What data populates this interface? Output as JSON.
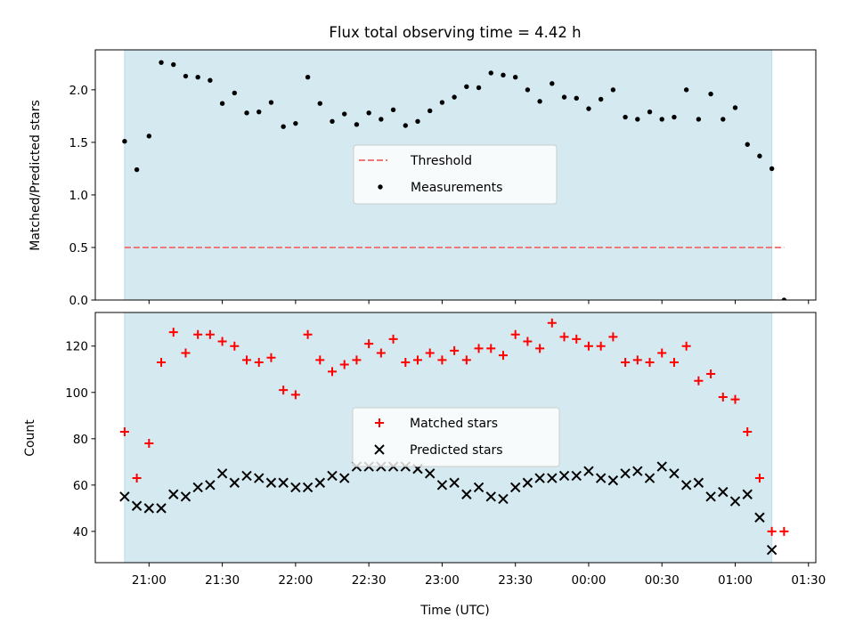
{
  "chart_data": [
    {
      "type": "scatter",
      "panel": "top",
      "title": "Flux total observing time = 4.42 h",
      "ylabel": "Matched/Predicted stars",
      "ylim": [
        0,
        2.38
      ],
      "yticks": [
        0.0,
        0.5,
        1.0,
        1.5,
        2.0
      ],
      "ytick_labels": [
        "0.0",
        "0.5",
        "1.0",
        "1.5",
        "2.0"
      ],
      "shaded_span": {
        "start": "20:50",
        "end": "01:15",
        "color": "#d4eaf0"
      },
      "legend": {
        "placement": "center",
        "entries": [
          "Threshold",
          "Measurements"
        ]
      },
      "series": [
        {
          "name": "Threshold",
          "style": "dashed-line",
          "color": "#f07878",
          "x": [
            "20:50",
            "01:20"
          ],
          "y": [
            0.5,
            0.5
          ]
        },
        {
          "name": "Measurements",
          "style": "dot",
          "color": "#000000",
          "x": [
            "20:50",
            "20:55",
            "21:00",
            "21:05",
            "21:10",
            "21:15",
            "21:20",
            "21:25",
            "21:30",
            "21:35",
            "21:40",
            "21:45",
            "21:50",
            "21:55",
            "22:00",
            "22:05",
            "22:10",
            "22:15",
            "22:20",
            "22:25",
            "22:30",
            "22:35",
            "22:40",
            "22:45",
            "22:50",
            "22:55",
            "23:00",
            "23:05",
            "23:10",
            "23:15",
            "23:20",
            "23:25",
            "23:30",
            "23:35",
            "23:40",
            "23:45",
            "23:50",
            "23:55",
            "00:00",
            "00:05",
            "00:10",
            "00:15",
            "00:20",
            "00:25",
            "00:30",
            "00:35",
            "00:40",
            "00:45",
            "00:50",
            "00:55",
            "01:00",
            "01:05",
            "01:10",
            "01:15",
            "01:20"
          ],
          "y": [
            1.51,
            1.24,
            1.56,
            2.26,
            2.24,
            2.13,
            2.12,
            2.09,
            1.87,
            1.97,
            1.78,
            1.79,
            1.88,
            1.65,
            1.68,
            2.12,
            1.87,
            1.7,
            1.77,
            1.67,
            1.78,
            1.72,
            1.81,
            1.66,
            1.7,
            1.8,
            1.88,
            1.93,
            2.03,
            2.02,
            2.16,
            2.14,
            2.12,
            2.0,
            1.89,
            2.06,
            1.93,
            1.92,
            1.82,
            1.91,
            2.0,
            1.74,
            1.72,
            1.79,
            1.72,
            1.74,
            2.0,
            1.72,
            1.96,
            1.72,
            1.83,
            1.48,
            1.37,
            1.25,
            0.0
          ]
        }
      ]
    },
    {
      "type": "scatter",
      "panel": "bottom",
      "xlabel": "Time (UTC)",
      "ylabel": "Count",
      "ylim": [
        26.5,
        134.5
      ],
      "yticks": [
        40,
        60,
        80,
        100,
        120
      ],
      "ytick_labels": [
        "40",
        "60",
        "80",
        "100",
        "120"
      ],
      "xlim": [
        "20:38",
        "01:33"
      ],
      "xticks": [
        "21:00",
        "21:30",
        "22:00",
        "22:30",
        "23:00",
        "23:30",
        "00:00",
        "00:30",
        "01:00",
        "01:30"
      ],
      "xtick_labels": [
        "21:00",
        "21:30",
        "22:00",
        "22:30",
        "23:00",
        "23:30",
        "00:00",
        "00:30",
        "01:00",
        "01:30"
      ],
      "shaded_span": {
        "start": "20:50",
        "end": "01:15",
        "color": "#d4eaf0"
      },
      "legend": {
        "placement": "center",
        "entries": [
          "Matched stars",
          "Predicted stars"
        ]
      },
      "series": [
        {
          "name": "Matched stars",
          "style": "plus",
          "color": "#ff0000",
          "x": [
            "20:50",
            "20:55",
            "21:00",
            "21:05",
            "21:10",
            "21:15",
            "21:20",
            "21:25",
            "21:30",
            "21:35",
            "21:40",
            "21:45",
            "21:50",
            "21:55",
            "22:00",
            "22:05",
            "22:10",
            "22:15",
            "22:20",
            "22:25",
            "22:30",
            "22:35",
            "22:40",
            "22:45",
            "22:50",
            "22:55",
            "23:00",
            "23:05",
            "23:10",
            "23:15",
            "23:20",
            "23:25",
            "23:30",
            "23:35",
            "23:40",
            "23:45",
            "23:50",
            "23:55",
            "00:00",
            "00:05",
            "00:10",
            "00:15",
            "00:20",
            "00:25",
            "00:30",
            "00:35",
            "00:40",
            "00:45",
            "00:50",
            "00:55",
            "01:00",
            "01:05",
            "01:10",
            "01:15",
            "01:20"
          ],
          "y": [
            83,
            63,
            78,
            113,
            126,
            117,
            125,
            125,
            122,
            120,
            114,
            113,
            115,
            101,
            99,
            125,
            114,
            109,
            112,
            114,
            121,
            117,
            123,
            113,
            114,
            117,
            114,
            118,
            114,
            119,
            119,
            116,
            125,
            122,
            119,
            130,
            124,
            123,
            120,
            120,
            124,
            113,
            114,
            113,
            117,
            113,
            120,
            105,
            108,
            98,
            97,
            83,
            63,
            40,
            40
          ]
        },
        {
          "name": "Predicted stars",
          "style": "x",
          "color": "#000000",
          "x": [
            "20:50",
            "20:55",
            "21:00",
            "21:05",
            "21:10",
            "21:15",
            "21:20",
            "21:25",
            "21:30",
            "21:35",
            "21:40",
            "21:45",
            "21:50",
            "21:55",
            "22:00",
            "22:05",
            "22:10",
            "22:15",
            "22:20",
            "22:25",
            "22:30",
            "22:35",
            "22:40",
            "22:45",
            "22:50",
            "22:55",
            "23:00",
            "23:05",
            "23:10",
            "23:15",
            "23:20",
            "23:25",
            "23:30",
            "23:35",
            "23:40",
            "23:45",
            "23:50",
            "23:55",
            "00:00",
            "00:05",
            "00:10",
            "00:15",
            "00:20",
            "00:25",
            "00:30",
            "00:35",
            "00:40",
            "00:45",
            "00:50",
            "00:55",
            "01:00",
            "01:05",
            "01:10",
            "01:15"
          ],
          "y": [
            55,
            51,
            50,
            50,
            56,
            55,
            59,
            60,
            65,
            61,
            64,
            63,
            61,
            61,
            59,
            59,
            61,
            64,
            63,
            68,
            68,
            68,
            68,
            68,
            67,
            65,
            60,
            61,
            56,
            59,
            55,
            54,
            59,
            61,
            63,
            63,
            64,
            64,
            66,
            63,
            62,
            65,
            66,
            63,
            68,
            65,
            60,
            61,
            55,
            57,
            53,
            56,
            46,
            32
          ]
        }
      ]
    }
  ]
}
